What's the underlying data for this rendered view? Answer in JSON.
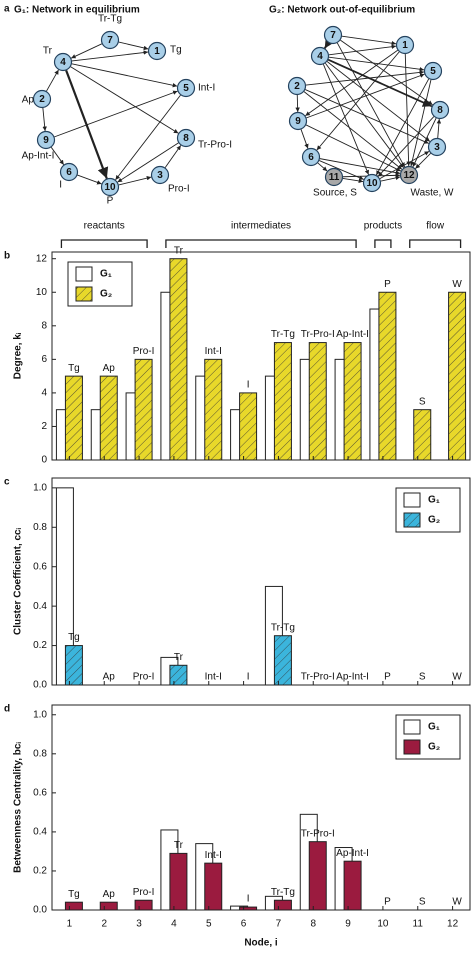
{
  "networks": {
    "panel": "a",
    "graphs": [
      {
        "title": "G₁: Network in equilibrium",
        "nodes": [
          {
            "id": "1",
            "label": "Tg"
          },
          {
            "id": "2",
            "label": "Ap"
          },
          {
            "id": "3",
            "label": "Pro-I"
          },
          {
            "id": "4",
            "label": "Tr"
          },
          {
            "id": "5",
            "label": "Int-I"
          },
          {
            "id": "6",
            "label": "I"
          },
          {
            "id": "7",
            "label": "Tr-Tg"
          },
          {
            "id": "8",
            "label": "Tr-Pro-I"
          },
          {
            "id": "9",
            "label": "Ap-Int-I"
          },
          {
            "id": "10",
            "label": "P"
          }
        ]
      },
      {
        "title": "G₂: Network out-of-equilibrium",
        "nodes": [
          {
            "id": "1"
          },
          {
            "id": "2"
          },
          {
            "id": "3"
          },
          {
            "id": "4"
          },
          {
            "id": "5"
          },
          {
            "id": "6"
          },
          {
            "id": "7"
          },
          {
            "id": "8"
          },
          {
            "id": "9"
          },
          {
            "id": "10"
          },
          {
            "id": "11",
            "label": "Source, S"
          },
          {
            "id": "12",
            "label": "Waste, W"
          }
        ]
      }
    ]
  },
  "chart_data": [
    {
      "type": "bar",
      "panel": "b",
      "ylabel": "Degree, kᵢ",
      "groups": [
        "reactants",
        "intermediates",
        "products",
        "flow"
      ],
      "categories": [
        "Tg",
        "Ap",
        "Pro-I",
        "Tr",
        "Int-I",
        "I",
        "Tr-Tg",
        "Tr-Pro-I",
        "Ap-Int-I",
        "P",
        "S",
        "W"
      ],
      "series": [
        {
          "name": "G₁",
          "color": "#ffffff",
          "hatch": false,
          "values": [
            3,
            3,
            4,
            10,
            5,
            3,
            5,
            6,
            6,
            9,
            0,
            0
          ]
        },
        {
          "name": "G₂",
          "color": "#e8d82a",
          "hatch": true,
          "values": [
            5,
            5,
            6,
            12,
            6,
            4,
            7,
            7,
            7,
            10,
            3,
            10
          ]
        }
      ],
      "ylim": [
        0,
        12.4
      ],
      "yticks": [
        0,
        2,
        4,
        6,
        8,
        10,
        12
      ],
      "legend": "upper left"
    },
    {
      "type": "bar",
      "panel": "c",
      "ylabel": "Cluster Coefficient, ccᵢ",
      "categories": [
        "Tg",
        "Ap",
        "Pro-I",
        "Tr",
        "Int-I",
        "I",
        "Tr-Tg",
        "Tr-Pro-I",
        "Ap-Int-I",
        "P",
        "S",
        "W"
      ],
      "series": [
        {
          "name": "G₁",
          "color": "#ffffff",
          "hatch": false,
          "values": [
            1.0,
            0,
            0,
            0.14,
            0,
            0,
            0.5,
            0,
            0,
            0,
            0,
            0
          ]
        },
        {
          "name": "G₂",
          "color": "#3bb5dc",
          "hatch": true,
          "values": [
            0.2,
            0,
            0,
            0.1,
            0,
            0,
            0.25,
            0,
            0,
            0,
            0,
            0
          ]
        }
      ],
      "ylim": [
        0,
        1.05
      ],
      "yticks": [
        {
          "value": 0,
          "label": "0.0"
        },
        0.2,
        0.4,
        0.6,
        0.8,
        {
          "value": 1,
          "label": "1.0"
        }
      ],
      "legend": "upper right"
    },
    {
      "type": "bar",
      "panel": "d",
      "ylabel": "Betweenness Centrality, bcᵢ",
      "xlabel": "Node, i",
      "categories": [
        "Tg",
        "Ap",
        "Pro-I",
        "Tr",
        "Int-I",
        "I",
        "Tr-Tg",
        "Tr-Pro-I",
        "Ap-Int-I",
        "P",
        "S",
        "W"
      ],
      "xticks": [
        1,
        2,
        3,
        4,
        5,
        6,
        7,
        8,
        9,
        10,
        11,
        12
      ],
      "series": [
        {
          "name": "G₁",
          "color": "#ffffff",
          "hatch": false,
          "values": [
            0,
            0,
            0,
            0.41,
            0.34,
            0.02,
            0.07,
            0.49,
            0.32,
            0,
            0,
            0
          ]
        },
        {
          "name": "G₂",
          "color": "#9b1b3f",
          "hatch": false,
          "values": [
            0.04,
            0.04,
            0.05,
            0.29,
            0.24,
            0.015,
            0.05,
            0.35,
            0.25,
            0,
            0,
            0
          ]
        }
      ],
      "ylim": [
        0,
        1.05
      ],
      "yticks": [
        {
          "value": 0,
          "label": "0.0"
        },
        0.2,
        0.4,
        0.6,
        0.8,
        {
          "value": 1,
          "label": "1.0"
        }
      ],
      "legend": "upper right"
    }
  ]
}
